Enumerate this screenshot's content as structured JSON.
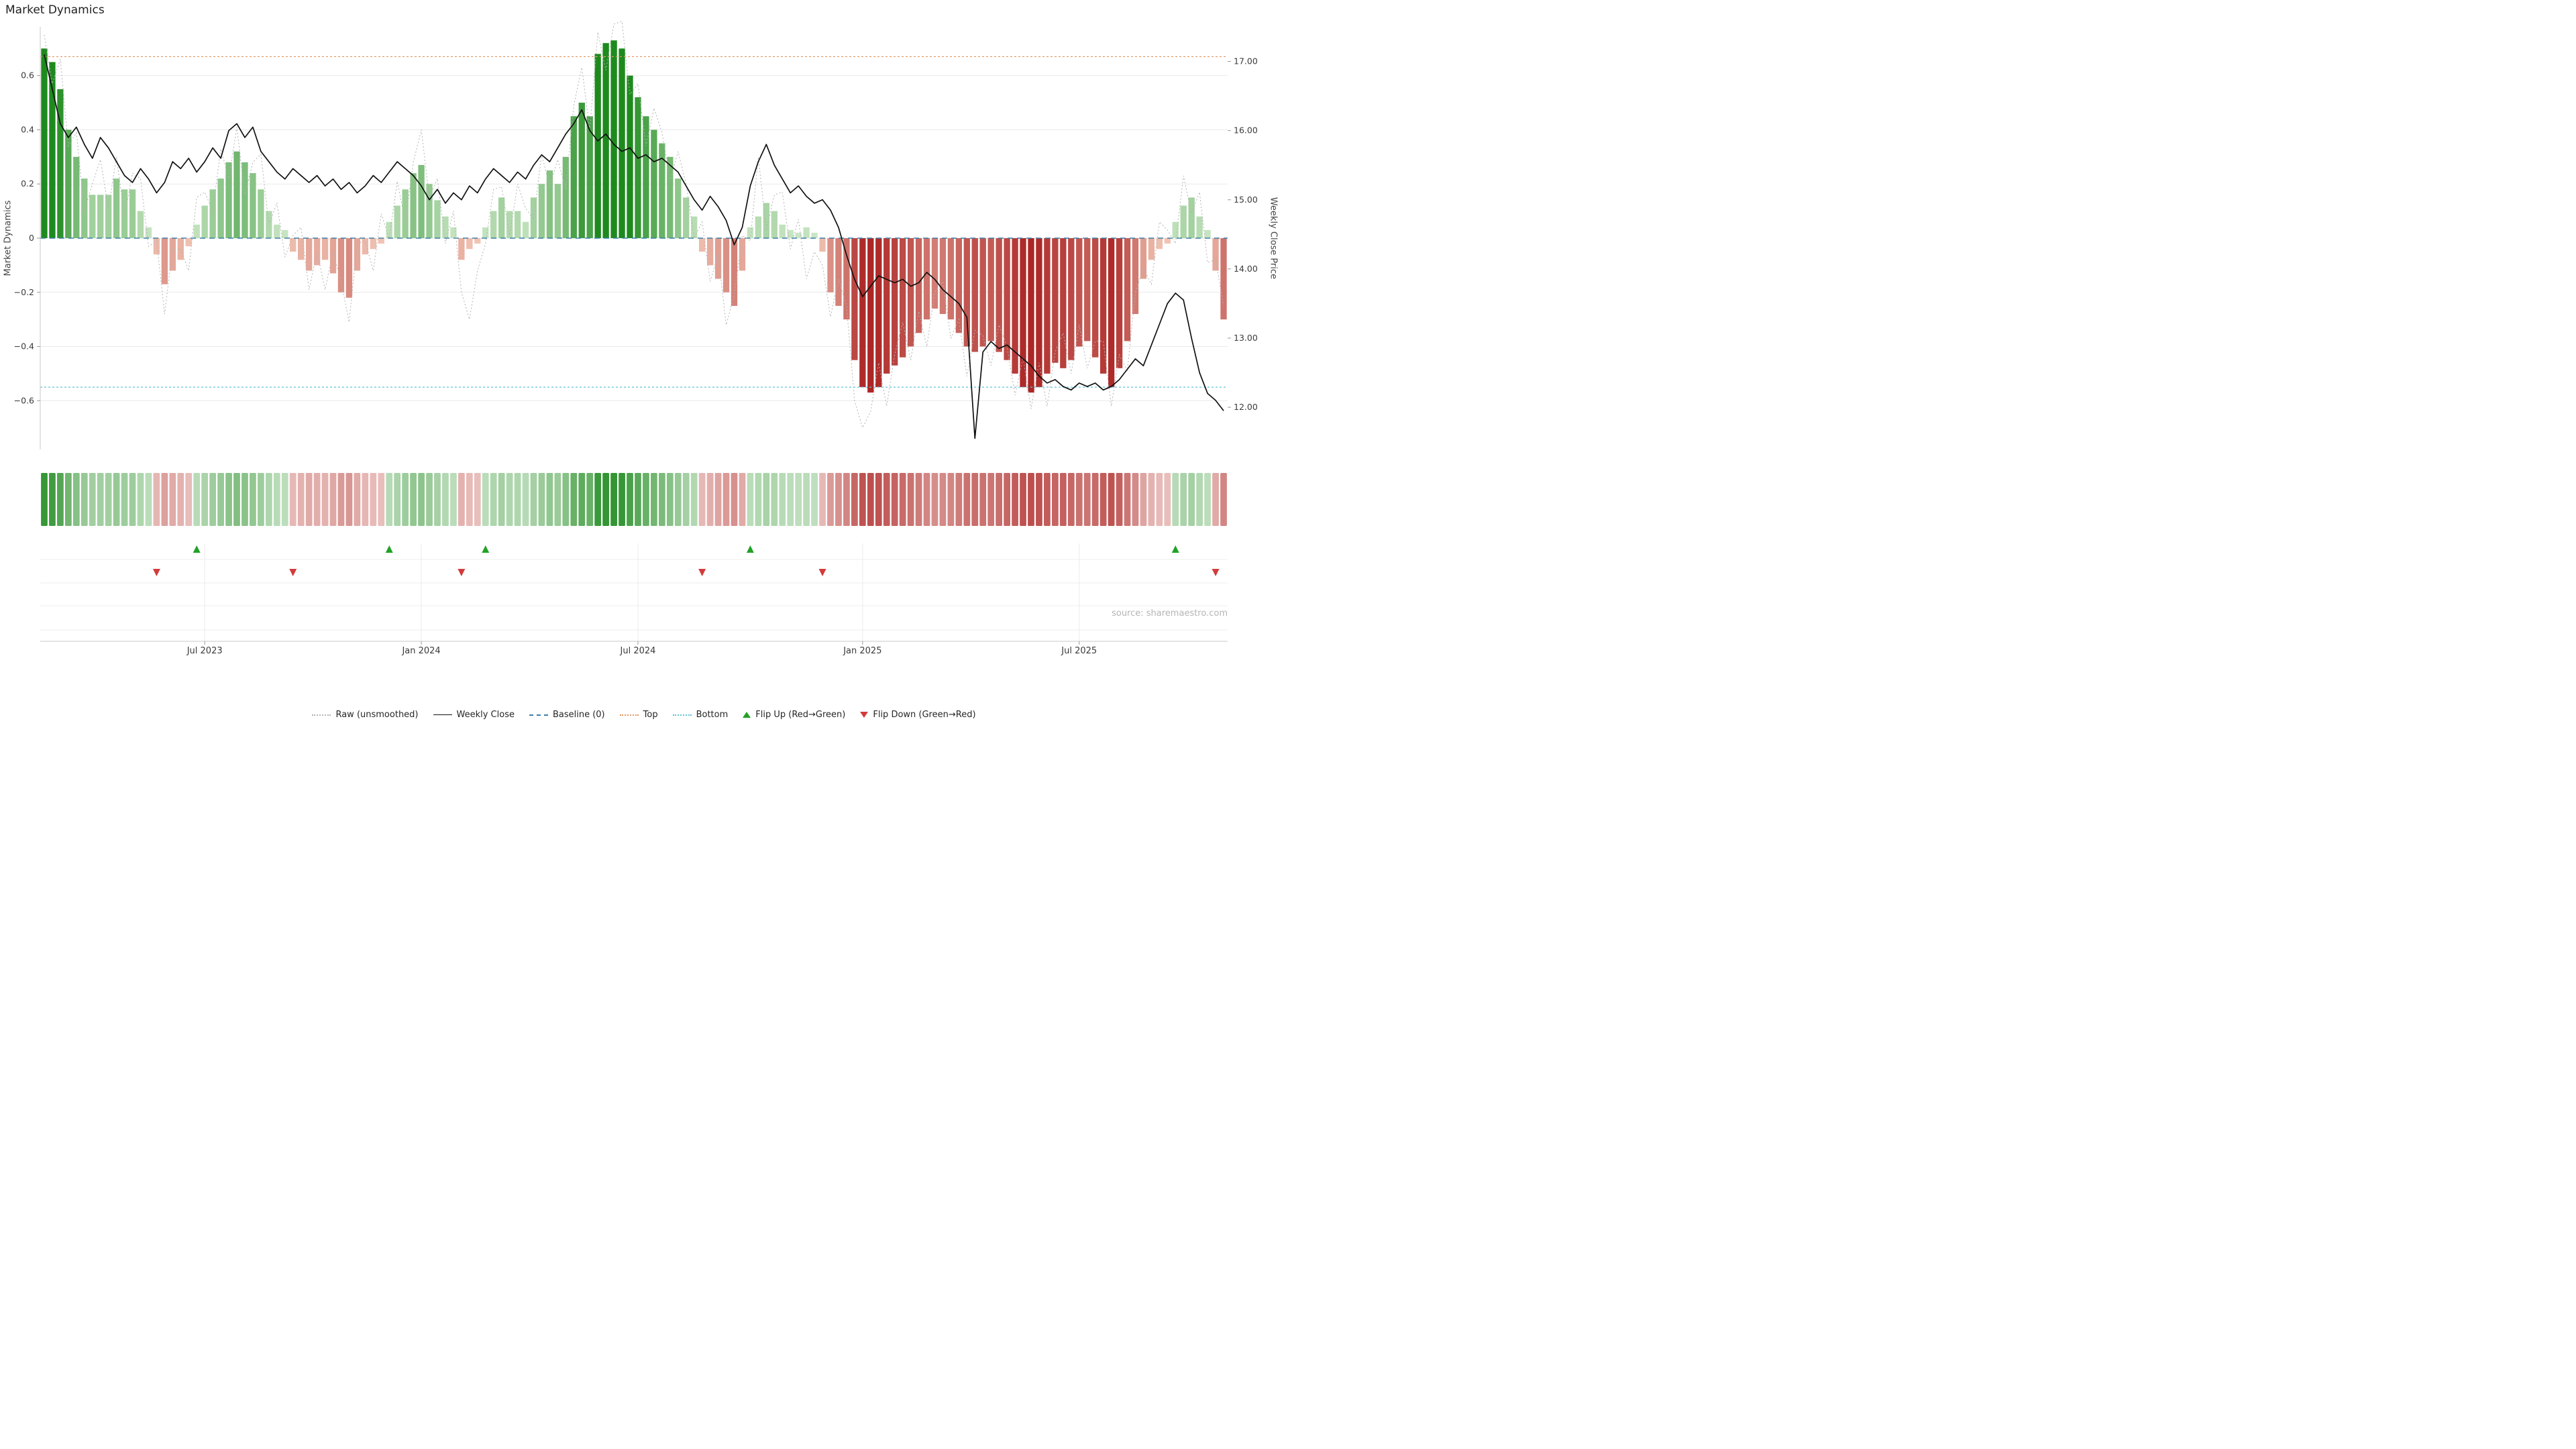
{
  "title": "Market Dynamics",
  "source": "source: sharemaestro.com",
  "left_axis": {
    "label": "Market Dynamics",
    "ticks": [
      {
        "v": 0.6,
        "label": "0.6"
      },
      {
        "v": 0.4,
        "label": "0.4"
      },
      {
        "v": 0.2,
        "label": "0.2"
      },
      {
        "v": 0.0,
        "label": "0"
      },
      {
        "v": -0.2,
        "label": "−0.2"
      },
      {
        "v": -0.4,
        "label": "−0.4"
      },
      {
        "v": -0.6,
        "label": "−0.6"
      }
    ]
  },
  "right_axis": {
    "label": "Weekly Close Price",
    "ticks": [
      {
        "v": 17.0,
        "label": "17.00"
      },
      {
        "v": 16.0,
        "label": "16.00"
      },
      {
        "v": 15.0,
        "label": "15.00"
      },
      {
        "v": 14.0,
        "label": "14.00"
      },
      {
        "v": 13.0,
        "label": "13.00"
      },
      {
        "v": 12.0,
        "label": "12.00"
      }
    ]
  },
  "x_axis": {
    "ticks": [
      {
        "label": "Jul 2023",
        "week": 20
      },
      {
        "label": "Jan 2024",
        "week": 47
      },
      {
        "label": "Jul 2024",
        "week": 74
      },
      {
        "label": "Jan 2025",
        "week": 102
      },
      {
        "label": "Jul 2025",
        "week": 129
      }
    ]
  },
  "legend": {
    "items": [
      {
        "label": "Raw (unsmoothed)",
        "swatch": "raw"
      },
      {
        "label": "Weekly Close",
        "swatch": "close"
      },
      {
        "label": "Baseline (0)",
        "swatch": "baseline"
      },
      {
        "label": "Top",
        "swatch": "top"
      },
      {
        "label": "Bottom",
        "swatch": "bottom"
      },
      {
        "label": "Flip Up (Red→Green)",
        "swatch": "flip_up"
      },
      {
        "label": "Flip Down (Green→Red)",
        "swatch": "flip_down"
      }
    ]
  },
  "colors": {
    "bar_pos_dark": "#1e8a1e",
    "bar_pos_light": "#cfe9ca",
    "bar_neg_dark": "#a81d1d",
    "bar_neg_light": "#f3c9b8",
    "raw_line": "#b3b3b3",
    "close_line": "#111111",
    "baseline": "#3d7ea6",
    "top": "#e0955e",
    "bottom": "#5fc3d4",
    "flip_up": "#23a127",
    "flip_down": "#d23b3b",
    "grid": "#e9e9e9",
    "spine": "#c9c9c9",
    "tick_text": "#3a3a3a",
    "source_text": "#b5b5b5"
  },
  "chart_data": {
    "type": "bar",
    "x_unit": "week",
    "n_points": 148,
    "title": "Market Dynamics",
    "left_ylabel": "Market Dynamics",
    "right_ylabel": "Weekly Close Price",
    "left_ylim": [
      -0.78,
      0.78
    ],
    "right_ylim": [
      11.39,
      17.5
    ],
    "x_tick_labels": [
      "Jul 2023",
      "Jan 2024",
      "Jul 2024",
      "Jan 2025",
      "Jul 2025"
    ],
    "x_tick_weeks": [
      20,
      47,
      74,
      102,
      129
    ],
    "reference_lines": {
      "baseline": 0,
      "top": 0.67,
      "bottom": -0.55
    },
    "flip_up_weeks": [
      19,
      43,
      55,
      88,
      141
    ],
    "flip_down_weeks": [
      14,
      31,
      52,
      82,
      97,
      146
    ],
    "series": [
      {
        "name": "Market Dynamics (smoothed)",
        "type": "bar",
        "axis": "left",
        "values": [
          0.7,
          0.65,
          0.55,
          0.4,
          0.3,
          0.22,
          0.16,
          0.16,
          0.16,
          0.22,
          0.18,
          0.18,
          0.1,
          0.04,
          -0.06,
          -0.17,
          -0.12,
          -0.08,
          -0.03,
          0.05,
          0.12,
          0.18,
          0.22,
          0.28,
          0.32,
          0.28,
          0.24,
          0.18,
          0.1,
          0.05,
          0.03,
          -0.05,
          -0.08,
          -0.12,
          -0.1,
          -0.08,
          -0.13,
          -0.2,
          -0.22,
          -0.12,
          -0.06,
          -0.04,
          -0.02,
          0.06,
          0.12,
          0.18,
          0.24,
          0.27,
          0.2,
          0.14,
          0.08,
          0.04,
          -0.08,
          -0.04,
          -0.02,
          0.04,
          0.1,
          0.15,
          0.1,
          0.1,
          0.06,
          0.15,
          0.2,
          0.25,
          0.2,
          0.3,
          0.45,
          0.5,
          0.45,
          0.68,
          0.72,
          0.73,
          0.7,
          0.6,
          0.52,
          0.45,
          0.4,
          0.35,
          0.3,
          0.22,
          0.15,
          0.08,
          -0.05,
          -0.1,
          -0.15,
          -0.2,
          -0.25,
          -0.12,
          0.04,
          0.08,
          0.13,
          0.1,
          0.05,
          0.03,
          0.02,
          0.04,
          0.02,
          -0.05,
          -0.2,
          -0.25,
          -0.3,
          -0.45,
          -0.55,
          -0.57,
          -0.55,
          -0.5,
          -0.47,
          -0.44,
          -0.4,
          -0.35,
          -0.3,
          -0.26,
          -0.28,
          -0.3,
          -0.35,
          -0.4,
          -0.42,
          -0.4,
          -0.38,
          -0.42,
          -0.45,
          -0.5,
          -0.55,
          -0.57,
          -0.55,
          -0.5,
          -0.46,
          -0.48,
          -0.45,
          -0.4,
          -0.38,
          -0.44,
          -0.5,
          -0.55,
          -0.48,
          -0.38,
          -0.28,
          -0.15,
          -0.08,
          -0.04,
          -0.02,
          0.06,
          0.12,
          0.15,
          0.08,
          0.03,
          -0.12,
          -0.3
        ]
      },
      {
        "name": "Raw (unsmoothed)",
        "type": "line",
        "style": "dotted",
        "axis": "left",
        "values": [
          0.75,
          0.57,
          0.66,
          0.34,
          0.39,
          0.1,
          0.2,
          0.29,
          0.11,
          0.3,
          0.08,
          0.24,
          0.22,
          -0.03,
          -0.01,
          -0.28,
          -0.04,
          -0.04,
          -0.12,
          0.15,
          0.17,
          0.1,
          0.33,
          0.22,
          0.41,
          0.16,
          0.28,
          0.31,
          0.05,
          0.13,
          -0.07,
          0.01,
          0.04,
          -0.19,
          -0.05,
          -0.19,
          -0.05,
          -0.16,
          -0.31,
          -0.02,
          -0.01,
          -0.12,
          0.09,
          0.0,
          0.21,
          0.06,
          0.28,
          0.4,
          0.15,
          0.22,
          -0.02,
          0.1,
          -0.2,
          -0.3,
          -0.12,
          -0.02,
          0.18,
          0.19,
          0.01,
          0.2,
          0.11,
          0.07,
          0.31,
          0.19,
          0.29,
          0.18,
          0.49,
          0.63,
          0.4,
          0.76,
          0.62,
          0.79,
          0.8,
          0.53,
          0.57,
          0.34,
          0.48,
          0.39,
          0.21,
          0.32,
          0.2,
          0.0,
          0.06,
          -0.16,
          -0.06,
          -0.32,
          -0.21,
          0.01,
          -0.01,
          0.3,
          0.03,
          0.16,
          0.17,
          -0.04,
          0.07,
          -0.15,
          -0.05,
          -0.1,
          -0.29,
          -0.15,
          -0.25,
          -0.6,
          -0.7,
          -0.64,
          -0.46,
          -0.62,
          -0.43,
          -0.31,
          -0.45,
          -0.27,
          -0.4,
          -0.2,
          -0.16,
          -0.37,
          -0.3,
          -0.51,
          -0.34,
          -0.36,
          -0.47,
          -0.32,
          -0.4,
          -0.58,
          -0.44,
          -0.63,
          -0.46,
          -0.62,
          -0.42,
          -0.35,
          -0.5,
          -0.32,
          -0.48,
          -0.38,
          -0.38,
          -0.62,
          -0.43,
          -0.49,
          -0.2,
          -0.11,
          -0.17,
          0.06,
          0.03,
          -0.02,
          0.23,
          0.09,
          0.17,
          -0.09,
          -0.08,
          -0.25
        ]
      },
      {
        "name": "Weekly Close",
        "type": "line",
        "axis": "right",
        "values": [
          17.1,
          16.6,
          16.1,
          15.9,
          16.05,
          15.8,
          15.6,
          15.9,
          15.75,
          15.55,
          15.35,
          15.25,
          15.45,
          15.3,
          15.1,
          15.25,
          15.55,
          15.45,
          15.6,
          15.4,
          15.55,
          15.75,
          15.6,
          16.0,
          16.1,
          15.9,
          16.05,
          15.7,
          15.55,
          15.4,
          15.3,
          15.45,
          15.35,
          15.25,
          15.35,
          15.2,
          15.3,
          15.15,
          15.25,
          15.1,
          15.2,
          15.35,
          15.25,
          15.4,
          15.55,
          15.45,
          15.35,
          15.2,
          15.0,
          15.15,
          14.95,
          15.1,
          15.0,
          15.2,
          15.1,
          15.3,
          15.45,
          15.35,
          15.25,
          15.4,
          15.3,
          15.5,
          15.65,
          15.55,
          15.75,
          15.95,
          16.1,
          16.3,
          16.0,
          15.85,
          15.95,
          15.8,
          15.7,
          15.75,
          15.6,
          15.65,
          15.55,
          15.6,
          15.5,
          15.4,
          15.2,
          15.0,
          14.85,
          15.05,
          14.9,
          14.7,
          14.35,
          14.6,
          15.2,
          15.55,
          15.8,
          15.5,
          15.3,
          15.1,
          15.2,
          15.05,
          14.95,
          15.0,
          14.85,
          14.6,
          14.2,
          13.85,
          13.6,
          13.75,
          13.9,
          13.85,
          13.8,
          13.85,
          13.75,
          13.8,
          13.95,
          13.85,
          13.7,
          13.6,
          13.5,
          13.3,
          11.55,
          12.8,
          12.95,
          12.85,
          12.9,
          12.8,
          12.7,
          12.6,
          12.45,
          12.35,
          12.4,
          12.3,
          12.25,
          12.35,
          12.3,
          12.35,
          12.25,
          12.3,
          12.4,
          12.55,
          12.7,
          12.6,
          12.9,
          13.2,
          13.5,
          13.65,
          13.55,
          13.0,
          12.5,
          12.2,
          12.1,
          11.95
        ]
      }
    ],
    "heatmap_note": "heatmap strip cells colored from bar series values"
  }
}
